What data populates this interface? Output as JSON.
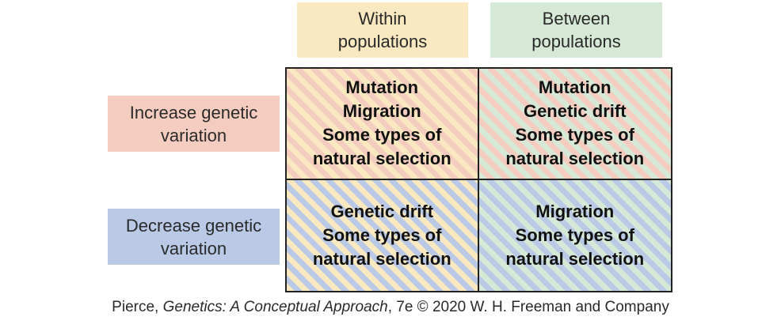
{
  "colors": {
    "within": "#f9e8c0",
    "between": "#d6e8d6",
    "increase": "#f5cdc0",
    "decrease": "#b9c9e6"
  },
  "columns": {
    "within": [
      "Within",
      "populations"
    ],
    "between": [
      "Between",
      "populations"
    ]
  },
  "rows": {
    "increase": [
      "Increase genetic",
      "variation"
    ],
    "decrease": [
      "Decrease genetic",
      "variation"
    ]
  },
  "cells": {
    "increase_within": [
      "Mutation",
      "Migration",
      "Some types of",
      "natural selection"
    ],
    "increase_between": [
      "Mutation",
      "Genetic drift",
      "Some types of",
      "natural selection"
    ],
    "decrease_within": [
      "Genetic drift",
      "Some types of",
      "natural selection"
    ],
    "decrease_between": [
      "Migration",
      "Some types of",
      "natural selection"
    ]
  },
  "credit": {
    "author": "Pierce, ",
    "title": "Genetics: A Conceptual Approach",
    "rest": ", 7e © 2020 W. H. Freeman and Company"
  }
}
